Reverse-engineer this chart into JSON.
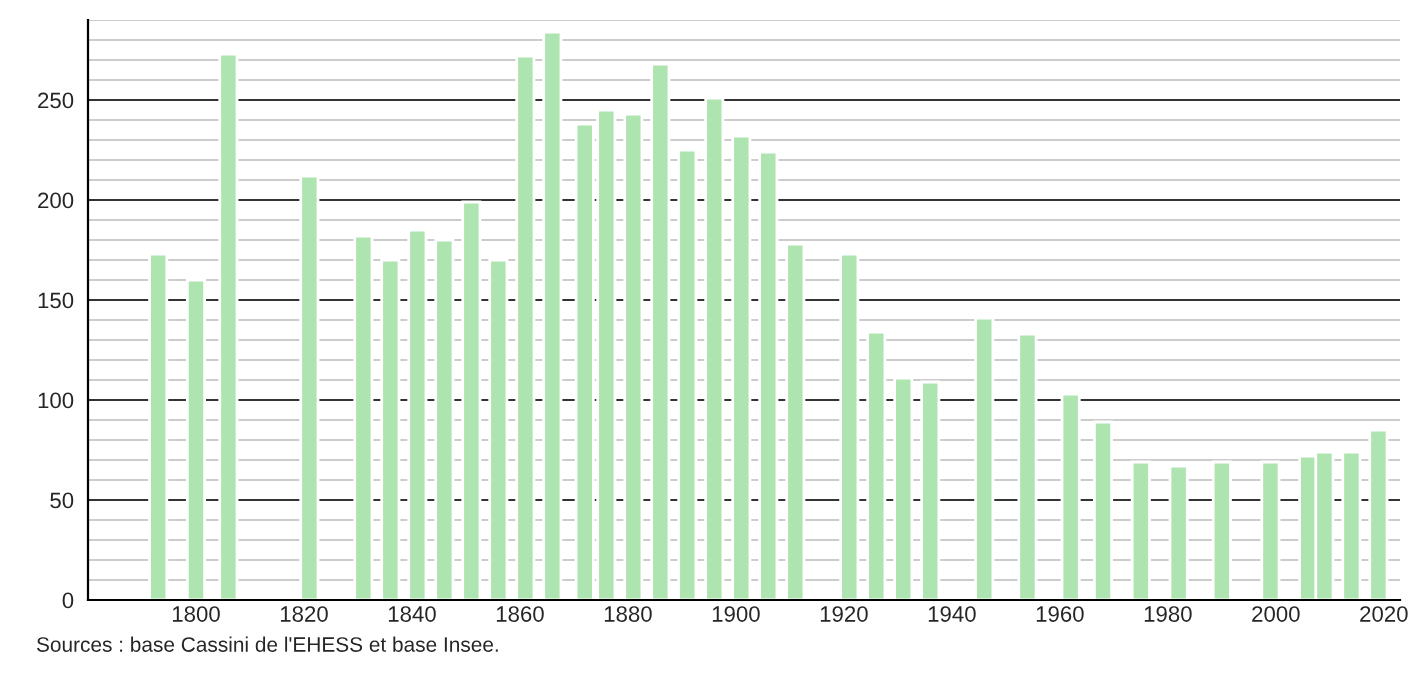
{
  "chart_data": {
    "type": "bar",
    "x": [
      1793,
      1800,
      1806,
      1821,
      1831,
      1836,
      1841,
      1846,
      1851,
      1856,
      1861,
      1866,
      1872,
      1876,
      1881,
      1886,
      1891,
      1896,
      1901,
      1906,
      1911,
      1921,
      1926,
      1931,
      1936,
      1946,
      1954,
      1962,
      1968,
      1975,
      1982,
      1990,
      1999,
      2006,
      2009,
      2014,
      2019
    ],
    "values": [
      173,
      160,
      273,
      212,
      182,
      170,
      185,
      180,
      199,
      170,
      272,
      284,
      238,
      245,
      243,
      268,
      225,
      251,
      232,
      224,
      178,
      173,
      134,
      111,
      109,
      141,
      133,
      103,
      89,
      69,
      67,
      69,
      69,
      72,
      74,
      74,
      85
    ],
    "color": "#aee4b0",
    "xlim": [
      1780,
      2023
    ],
    "xticks": [
      1800,
      1820,
      1840,
      1860,
      1880,
      1900,
      1920,
      1940,
      1960,
      1980,
      2000,
      2020
    ],
    "ylim": [
      0,
      290
    ],
    "yticks": [
      0,
      {
        "value": 10,
        "label": null
      },
      {
        "value": 20,
        "label": null
      },
      {
        "value": 30,
        "label": null
      },
      {
        "value": 40,
        "label": null
      },
      50,
      {
        "value": 60,
        "label": null
      },
      {
        "value": 70,
        "label": null
      },
      {
        "value": 80,
        "label": null
      },
      {
        "value": 90,
        "label": null
      },
      100,
      {
        "value": 110,
        "label": null
      },
      {
        "value": 120,
        "label": null
      },
      {
        "value": 130,
        "label": null
      },
      {
        "value": 140,
        "label": null
      },
      150,
      {
        "value": 160,
        "label": null
      },
      {
        "value": 170,
        "label": null
      },
      {
        "value": 180,
        "label": null
      },
      {
        "value": 190,
        "label": null
      },
      200,
      {
        "value": 210,
        "label": null
      },
      {
        "value": 220,
        "label": null
      },
      {
        "value": 230,
        "label": null
      },
      {
        "value": 240,
        "label": null
      },
      250,
      {
        "value": 260,
        "label": null
      },
      {
        "value": 270,
        "label": null
      },
      {
        "value": 280,
        "label": null
      },
      {
        "value": 290,
        "label": null
      }
    ],
    "grid": "y",
    "annotations": [
      "Sources : base Cassini de l'EHESS et base Insee."
    ]
  }
}
